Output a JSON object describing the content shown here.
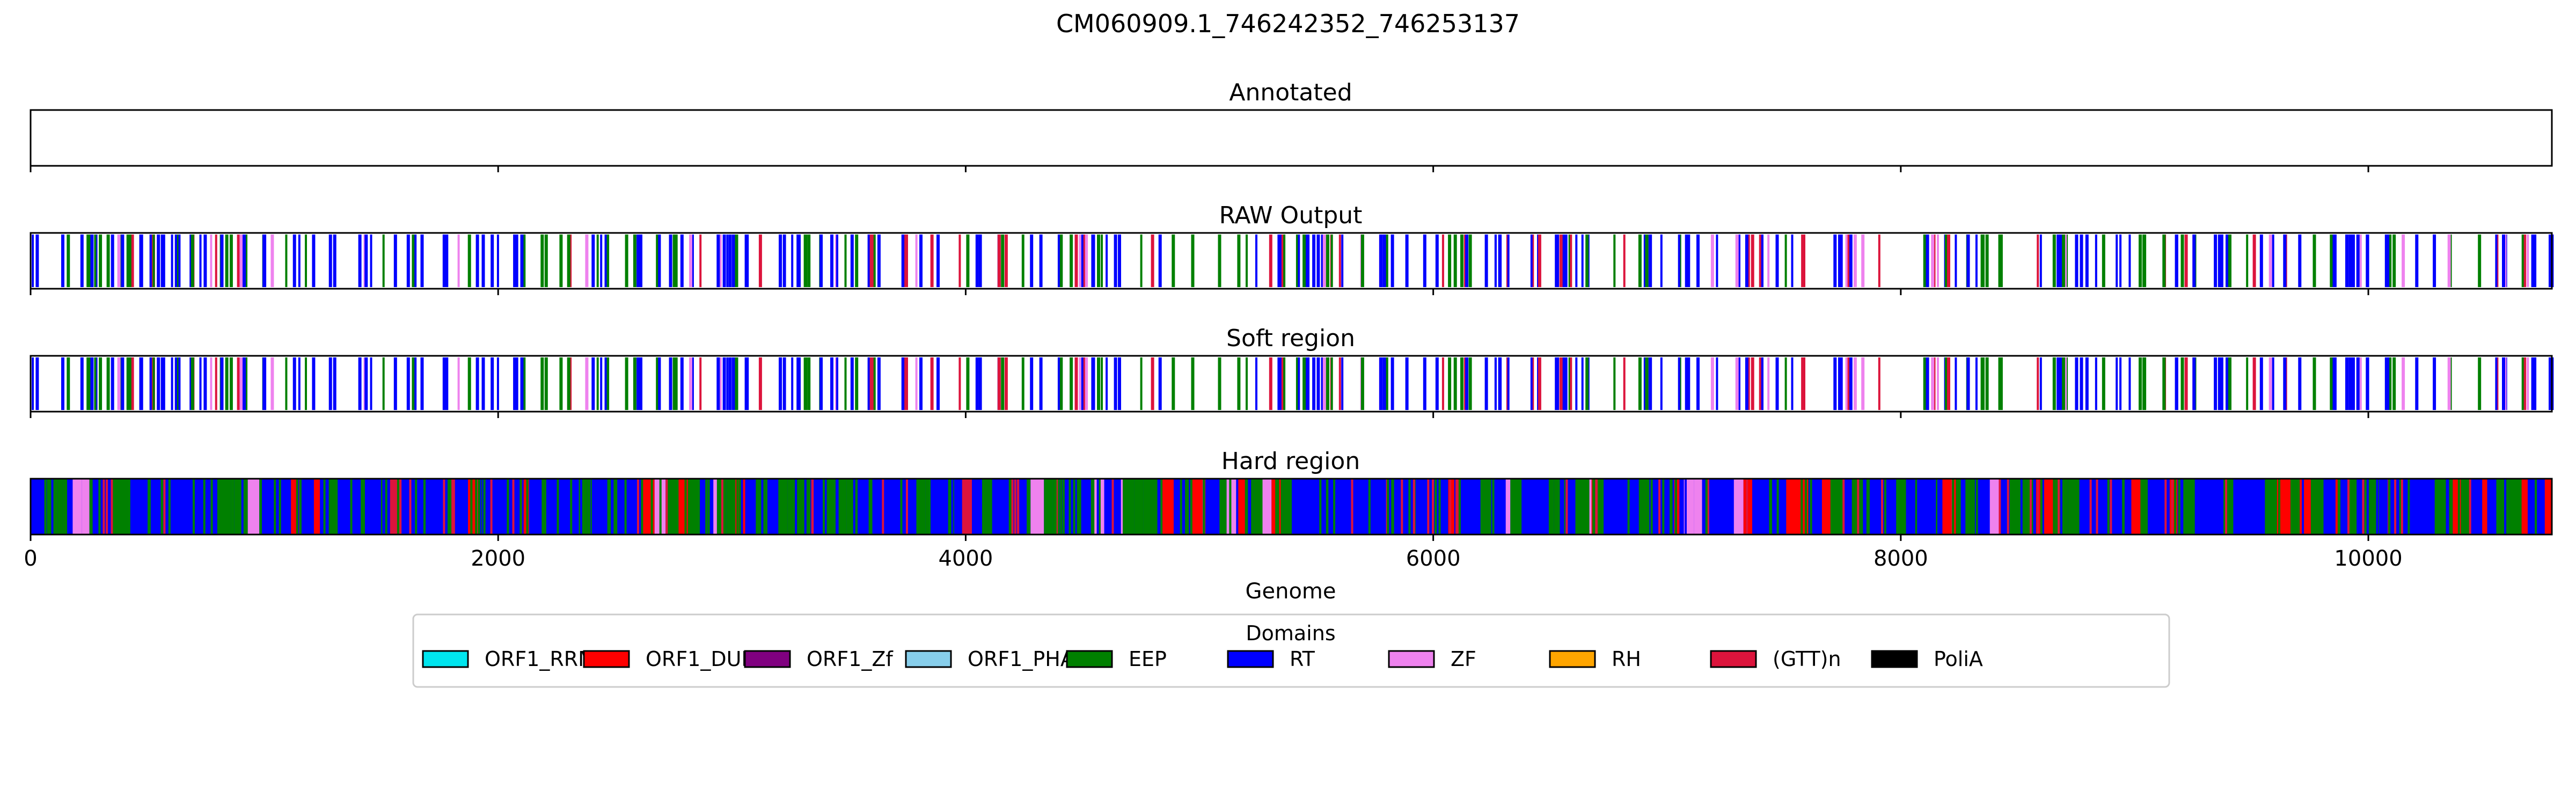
{
  "figure": {
    "title": "CM060909.1_746242352_746253137"
  },
  "chart_data": {
    "type": "track",
    "x": {
      "label": "Genome",
      "range": [
        0,
        10785
      ],
      "ticks": [
        0,
        2000,
        4000,
        6000,
        8000,
        10000
      ]
    },
    "tracks": [
      {
        "name": "Annotated",
        "segments": []
      },
      {
        "name": "RAW Output",
        "style": "lines",
        "seed": 11,
        "density": 380,
        "mix": {
          "RT": 0.52,
          "EEP": 0.24,
          "(GTT)n": 0.14,
          "ZF": 0.1
        }
      },
      {
        "name": "Soft region",
        "style": "lines",
        "seed": 11,
        "density": 380,
        "mix": {
          "RT": 0.52,
          "EEP": 0.24,
          "(GTT)n": 0.14,
          "ZF": 0.1
        }
      },
      {
        "name": "Hard region",
        "style": "filled",
        "seed": 29,
        "density": 900,
        "mix": {
          "RT": 0.56,
          "EEP": 0.3,
          "ORF1_DUF": 0.07,
          "ZF": 0.04,
          "(GTT)n": 0.03
        }
      }
    ],
    "legend": {
      "title": "Domains",
      "placement": "bottom-center",
      "entries": [
        {
          "name": "ORF1_RRM",
          "color": "#00e5ee"
        },
        {
          "name": "ORF1_DUF",
          "color": "#ff0000"
        },
        {
          "name": "ORF1_Zf",
          "color": "#800080"
        },
        {
          "name": "ORF1_PHA",
          "color": "#87ceeb"
        },
        {
          "name": "EEP",
          "color": "#008000"
        },
        {
          "name": "RT",
          "color": "#0000ff"
        },
        {
          "name": "ZF",
          "color": "#ee82ee"
        },
        {
          "name": "RH",
          "color": "#ffa500"
        },
        {
          "name": "(GTT)n",
          "color": "#dc143c"
        },
        {
          "name": "PoliA",
          "color": "#000000"
        }
      ]
    }
  }
}
